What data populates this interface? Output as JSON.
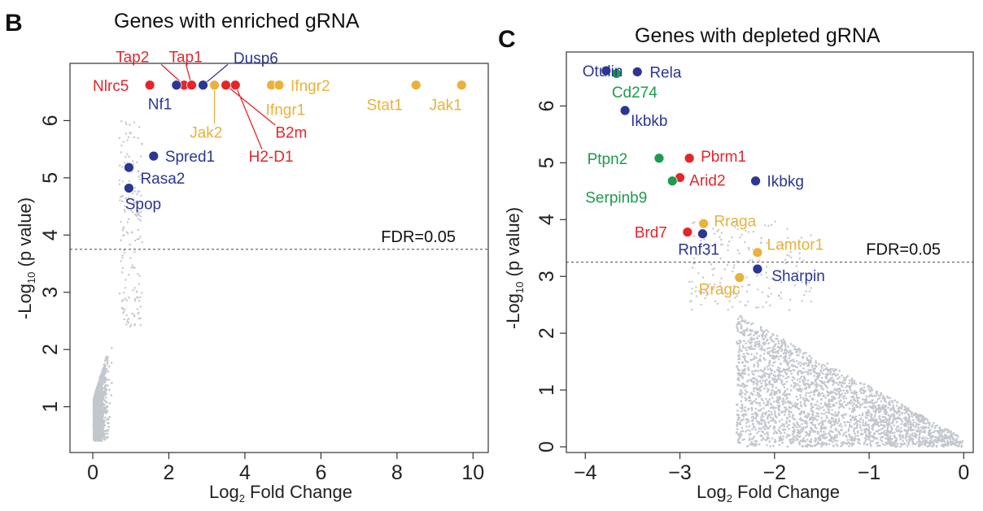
{
  "colors": {
    "background": "#ffffff",
    "frame": "#333333",
    "cloud": "#c2c7ce",
    "red": "#e4262b",
    "blue": "#2b3793",
    "gold": "#e9b23a",
    "green": "#1f9a4f"
  },
  "chart_data": [
    {
      "panel": "B",
      "type": "scatter",
      "title": "Genes with enriched gRNA",
      "xlabel": "Log",
      "xlabel_sub": "2",
      "xlabel_rest": " Fold Change",
      "ylabel": "-Log",
      "ylabel_sub": "10",
      "ylabel_rest": " (p value)",
      "xlim": [
        -0.6,
        10.4
      ],
      "ylim": [
        0.2,
        7.0
      ],
      "xticks": [
        0,
        2,
        4,
        6,
        8,
        10
      ],
      "yticks": [
        1,
        2,
        3,
        4,
        5,
        6
      ],
      "fdr": {
        "y": 3.75,
        "label": "FDR=0.05"
      },
      "background_cloud": "many non-significant genes (gray), concentrated at 0 < log2FC < 1.5",
      "highlighted": [
        {
          "name": "Nlrc5",
          "x": 1.5,
          "y": 6.62,
          "color": "red",
          "lx": 0.0,
          "ly": 6.62,
          "anchor": "start"
        },
        {
          "name": "Tap2",
          "x": 2.4,
          "y": 6.62,
          "color": "red",
          "lx": 0.6,
          "ly": 7.12,
          "anchor": "start",
          "leader": [
            1.8,
            6.98
          ]
        },
        {
          "name": "Tap1",
          "x": 2.6,
          "y": 6.62,
          "color": "red",
          "lx": 2.0,
          "ly": 7.12,
          "anchor": "start",
          "leader": [
            2.45,
            6.98
          ]
        },
        {
          "name": "Nf1",
          "x": 2.2,
          "y": 6.62,
          "color": "blue",
          "lx": 1.45,
          "ly": 6.3,
          "anchor": "start"
        },
        {
          "name": "Dusp6",
          "x": 2.9,
          "y": 6.62,
          "color": "blue",
          "lx": 3.7,
          "ly": 7.1,
          "anchor": "start",
          "leader": [
            3.55,
            6.98
          ]
        },
        {
          "name": "Jak2",
          "x": 3.2,
          "y": 6.62,
          "color": "gold",
          "lx": 2.55,
          "ly": 5.8,
          "anchor": "start",
          "leader": [
            3.2,
            5.95
          ]
        },
        {
          "name": "B2m",
          "x": 3.5,
          "y": 6.62,
          "color": "red",
          "lx": 4.8,
          "ly": 5.8,
          "anchor": "start",
          "leader": [
            4.8,
            5.92
          ]
        },
        {
          "name": "H2-D1",
          "x": 3.75,
          "y": 6.62,
          "color": "red",
          "lx": 4.1,
          "ly": 5.38,
          "anchor": "start",
          "leader": [
            4.45,
            5.5
          ]
        },
        {
          "name": "Ifngr1",
          "x": 4.7,
          "y": 6.62,
          "color": "gold",
          "lx": 4.55,
          "ly": 6.2,
          "anchor": "start"
        },
        {
          "name": "Ifngr2",
          "x": 4.9,
          "y": 6.62,
          "color": "gold",
          "lx": 5.2,
          "ly": 6.62,
          "anchor": "start"
        },
        {
          "name": "Stat1",
          "x": 8.5,
          "y": 6.62,
          "color": "gold",
          "lx": 7.2,
          "ly": 6.28,
          "anchor": "start"
        },
        {
          "name": "Jak1",
          "x": 9.7,
          "y": 6.62,
          "color": "gold",
          "lx": 8.85,
          "ly": 6.28,
          "anchor": "start"
        },
        {
          "name": "Spred1",
          "x": 1.6,
          "y": 5.38,
          "color": "blue",
          "lx": 1.9,
          "ly": 5.38,
          "anchor": "start"
        },
        {
          "name": "Rasa2",
          "x": 0.95,
          "y": 5.18,
          "color": "blue",
          "lx": 1.25,
          "ly": 5.0,
          "anchor": "start"
        },
        {
          "name": "Spop",
          "x": 0.95,
          "y": 4.82,
          "color": "blue",
          "lx": 0.85,
          "ly": 4.55,
          "anchor": "start"
        }
      ]
    },
    {
      "panel": "C",
      "type": "scatter",
      "title": "Genes with depleted gRNA",
      "xlabel": "Log",
      "xlabel_sub": "2",
      "xlabel_rest": " Fold Change",
      "ylabel": "-Log",
      "ylabel_sub": "10",
      "ylabel_rest": " (p value)",
      "xlim": [
        -4.2,
        0.1
      ],
      "ylim": [
        -0.1,
        6.95
      ],
      "xticks": [
        -4,
        -3,
        -2,
        -1,
        0
      ],
      "xtick_labels": [
        "−4",
        "−3",
        "−2",
        "−1",
        "0"
      ],
      "yticks": [
        0,
        1,
        2,
        3,
        4,
        5,
        6
      ],
      "fdr": {
        "y": 3.25,
        "label": "FDR=0.05"
      },
      "background_cloud": "many non-significant genes (gray), dense triangle from (-2.4, 2.2) to (0, 0)",
      "highlighted": [
        {
          "name": "Otulin",
          "x": -3.78,
          "y": 6.62,
          "color": "blue",
          "lx": -4.03,
          "ly": 6.62,
          "anchor": "start"
        },
        {
          "name": "Cd274",
          "x": -3.67,
          "y": 6.57,
          "color": "green",
          "lx": -3.72,
          "ly": 6.25,
          "anchor": "start"
        },
        {
          "name": "Rela",
          "x": -3.45,
          "y": 6.6,
          "color": "blue",
          "lx": -3.32,
          "ly": 6.6,
          "anchor": "start"
        },
        {
          "name": "Ikbkb",
          "x": -3.58,
          "y": 5.92,
          "color": "blue",
          "lx": -3.52,
          "ly": 5.75,
          "anchor": "start"
        },
        {
          "name": "Ptpn2",
          "x": -3.22,
          "y": 5.08,
          "color": "green",
          "lx": -3.98,
          "ly": 5.08,
          "anchor": "start"
        },
        {
          "name": "Pbrm1",
          "x": -2.9,
          "y": 5.08,
          "color": "red",
          "lx": -2.78,
          "ly": 5.12,
          "anchor": "start"
        },
        {
          "name": "Arid2",
          "x": -3.0,
          "y": 4.74,
          "color": "red",
          "lx": -2.9,
          "ly": 4.7,
          "anchor": "start"
        },
        {
          "name": "Serpinb9",
          "x": -3.08,
          "y": 4.68,
          "color": "green",
          "lx": -4.0,
          "ly": 4.4,
          "anchor": "start"
        },
        {
          "name": "Ikbkg",
          "x": -2.2,
          "y": 4.68,
          "color": "blue",
          "lx": -2.08,
          "ly": 4.68,
          "anchor": "start"
        },
        {
          "name": "Rraga",
          "x": -2.75,
          "y": 3.93,
          "color": "gold",
          "lx": -2.64,
          "ly": 3.98,
          "anchor": "start"
        },
        {
          "name": "Brd7",
          "x": -2.92,
          "y": 3.78,
          "color": "red",
          "lx": -3.48,
          "ly": 3.78,
          "anchor": "start"
        },
        {
          "name": "Rnf31",
          "x": -2.76,
          "y": 3.75,
          "color": "blue",
          "lx": -3.02,
          "ly": 3.48,
          "anchor": "start"
        },
        {
          "name": "Lamtor1",
          "x": -2.18,
          "y": 3.42,
          "color": "gold",
          "lx": -2.08,
          "ly": 3.57,
          "anchor": "start"
        },
        {
          "name": "Sharpin",
          "x": -2.18,
          "y": 3.13,
          "color": "blue",
          "lx": -2.03,
          "ly": 3.02,
          "anchor": "start"
        },
        {
          "name": "Rragc",
          "x": -2.37,
          "y": 2.98,
          "color": "gold",
          "lx": -2.8,
          "ly": 2.78,
          "anchor": "start"
        }
      ]
    }
  ]
}
